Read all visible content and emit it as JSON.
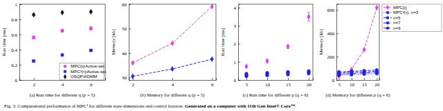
{
  "chart_data": [
    {
      "type": "scatter",
      "title": "(a) Run time for different q (p = 5)",
      "y_label": "Run time [ms]",
      "x": [
        2,
        4,
        6
      ],
      "xlim": [
        1,
        7
      ],
      "xticks": [
        2,
        4,
        6
      ],
      "ylim": [
        0,
        1
      ],
      "yticks": [
        0,
        0.2,
        0.4,
        0.6,
        0.8,
        1
      ],
      "legend": "lower right",
      "series": [
        {
          "name": "MPC(t)/Active-set",
          "color": "#e23ce2",
          "marker": "square",
          "values": [
            0.56,
            0.65,
            0.68
          ],
          "errors": [
            0.02,
            0.02,
            0.02
          ]
        },
        {
          "name": "MPC³(τ)/Active-set",
          "color": "#2222dd",
          "marker": "square",
          "values": [
            0.25,
            0.33,
            0.39
          ],
          "errors": [
            0.01,
            0.01,
            0.01
          ]
        },
        {
          "name": "OSQP/ADMM",
          "color": "#111111",
          "marker": "diamond",
          "values": [
            0.86,
            0.89,
            0.9
          ],
          "errors": [
            0.01,
            0.01,
            0.01
          ]
        }
      ]
    },
    {
      "type": "line",
      "title": "(b) Memory for different q (p = 5)",
      "y_label": "Memory [kb]",
      "x": [
        2,
        4,
        6
      ],
      "xlim": [
        1.8,
        6.2
      ],
      "xticks": [
        2,
        4,
        6
      ],
      "ylim": [
        29,
        60
      ],
      "yticks": [
        30,
        40,
        50,
        60
      ],
      "series": [
        {
          "color": "#e23ce2",
          "marker": "diamond",
          "line_style": "dashed",
          "values": [
            36,
            44,
            59
          ]
        },
        {
          "color": "#2222dd",
          "marker": "diamond",
          "line_style": "dashed",
          "values": [
            30.5,
            33.5,
            37.5
          ]
        }
      ]
    },
    {
      "type": "scatter",
      "title": "(c) Run time for different p (q = 6)",
      "y_label": "Run time [ms]",
      "x": [
        5,
        10,
        15,
        20
      ],
      "xlim": [
        3,
        21
      ],
      "xticks": [
        5,
        10,
        15,
        20
      ],
      "ylim": [
        0,
        4.2
      ],
      "yticks": [
        0,
        1,
        2,
        3,
        4
      ],
      "series": [
        {
          "color": "#e23ce2",
          "marker": "diamond",
          "values": [
            0.75,
            1.05,
            1.85,
            3.5
          ],
          "errors": [
            0.05,
            0.08,
            0.1,
            0.25
          ]
        },
        {
          "color": "#2222dd",
          "marker": "circle",
          "values": [
            0.2,
            0.25,
            0.3,
            0.35
          ]
        },
        {
          "color": "#2222dd",
          "marker": "circle",
          "values": [
            0.25,
            0.3,
            0.35,
            0.4
          ]
        },
        {
          "color": "#2222dd",
          "marker": "circle",
          "values": [
            0.3,
            0.35,
            0.4,
            0.45
          ]
        },
        {
          "color": "#2222dd",
          "marker": "circle",
          "values": [
            0.35,
            0.4,
            0.45,
            0.5
          ]
        }
      ]
    },
    {
      "type": "line",
      "title": "(d) Memory for different p (q = 6)",
      "y_label": "Memory [kb]",
      "x": [
        5,
        10,
        15,
        20
      ],
      "xlim": [
        4,
        21
      ],
      "xticks": [
        5,
        10,
        15,
        20
      ],
      "ylim": [
        0,
        650
      ],
      "yticks": [
        0,
        200,
        400,
        600
      ],
      "legend": "right",
      "series": [
        {
          "name": "MPC(t)",
          "color": "#e23ce2",
          "marker": "diamond",
          "line_style": "dashed",
          "values": [
            32,
            90,
            260,
            620
          ]
        },
        {
          "name": "MPC³(τ), n=3",
          "color": "#2222dd",
          "marker": "circle",
          "line_style": "dotted",
          "values": [
            40,
            45,
            50,
            55
          ]
        },
        {
          "name": "n=5",
          "color": "#2222dd",
          "marker": "circle",
          "line_style": "dashdot",
          "values": [
            50,
            55,
            60,
            65
          ]
        },
        {
          "name": "n=7",
          "color": "#2222dd",
          "marker": "circle",
          "line_style": "dashed",
          "values": [
            60,
            65,
            70,
            75
          ]
        },
        {
          "name": "n=9",
          "color": "#2222dd",
          "marker": "circle",
          "line_style": "dashed",
          "values": [
            70,
            75,
            80,
            85
          ]
        }
      ]
    }
  ],
  "caption": {
    "text": "Fig. 3. Computational performance of MPC³ for different state dimensions and control horizon. ",
    "bold": "Generated on a computer with 11th Gen Intel® Core™"
  }
}
